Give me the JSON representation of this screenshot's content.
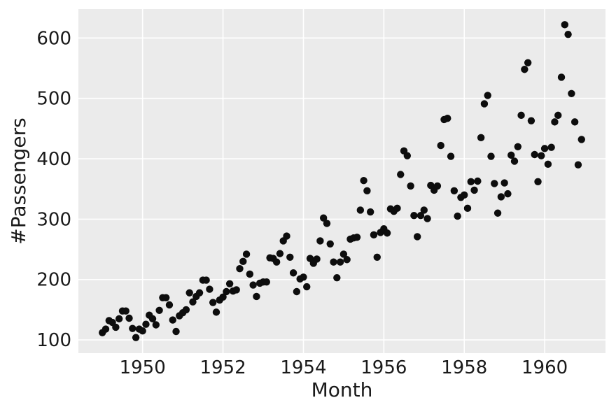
{
  "chart_data": {
    "type": "scatter",
    "title": "",
    "xlabel": "Month",
    "ylabel": "#Passengers",
    "x_unit": "year",
    "xlim": [
      1948.404,
      1961.513
    ],
    "ylim": [
      78.1,
      647.9
    ],
    "xticks": [
      1950,
      1952,
      1954,
      1956,
      1958,
      1960
    ],
    "yticks": [
      100,
      200,
      300,
      400,
      500,
      600
    ],
    "grid": true,
    "legend": false,
    "style": {
      "figure_bg": "#ffffff",
      "plot_bg": "#ebebeb",
      "grid_color": "#ffffff",
      "point_color": "#0d0d0d",
      "text_color": "#1a1a1a",
      "point_radius": 5.2,
      "grid_width": 1.6
    },
    "series": [
      {
        "name": "#Passengers",
        "years": [
          {
            "year": 1949,
            "values": [
              112,
              118,
              132,
              129,
              121,
              135,
              148,
              148,
              136,
              119,
              104,
              118
            ]
          },
          {
            "year": 1950,
            "values": [
              115,
              126,
              141,
              135,
              125,
              149,
              170,
              170,
              158,
              133,
              114,
              140
            ]
          },
          {
            "year": 1951,
            "values": [
              145,
              150,
              178,
              163,
              172,
              178,
              199,
              199,
              184,
              162,
              146,
              166
            ]
          },
          {
            "year": 1952,
            "values": [
              171,
              180,
              193,
              181,
              183,
              218,
              230,
              242,
              209,
              191,
              172,
              194
            ]
          },
          {
            "year": 1953,
            "values": [
              196,
              196,
              236,
              235,
              229,
              243,
              264,
              272,
              237,
              211,
              180,
              201
            ]
          },
          {
            "year": 1954,
            "values": [
              204,
              188,
              235,
              227,
              234,
              264,
              302,
              293,
              259,
              229,
              203,
              229
            ]
          },
          {
            "year": 1955,
            "values": [
              242,
              233,
              267,
              269,
              270,
              315,
              364,
              347,
              312,
              274,
              237,
              278
            ]
          },
          {
            "year": 1956,
            "values": [
              284,
              277,
              317,
              313,
              318,
              374,
              413,
              405,
              355,
              306,
              271,
              306
            ]
          },
          {
            "year": 1957,
            "values": [
              315,
              301,
              356,
              348,
              355,
              422,
              465,
              467,
              404,
              347,
              305,
              336
            ]
          },
          {
            "year": 1958,
            "values": [
              340,
              318,
              362,
              348,
              363,
              435,
              491,
              505,
              404,
              359,
              310,
              337
            ]
          },
          {
            "year": 1959,
            "values": [
              360,
              342,
              406,
              396,
              420,
              472,
              548,
              559,
              463,
              407,
              362,
              405
            ]
          },
          {
            "year": 1960,
            "values": [
              417,
              391,
              419,
              461,
              472,
              535,
              622,
              606,
              508,
              461,
              390,
              432
            ]
          }
        ]
      }
    ]
  }
}
